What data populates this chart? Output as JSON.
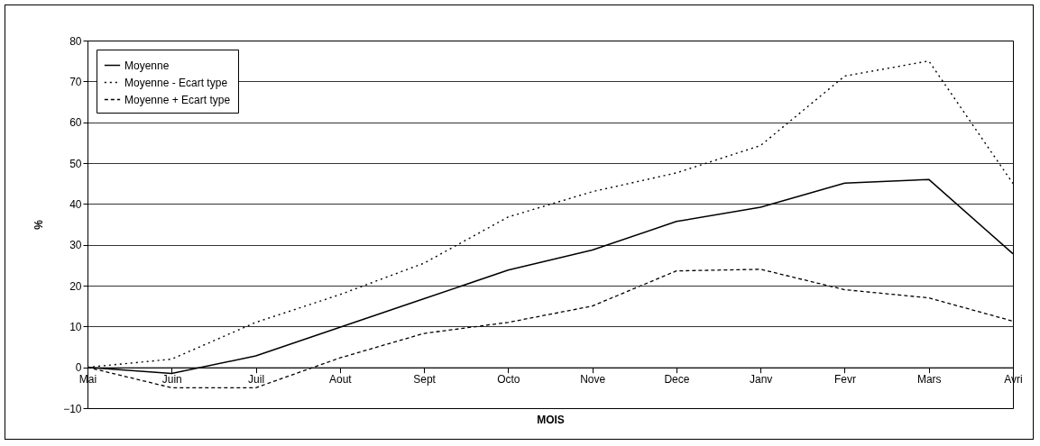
{
  "chart_data": {
    "type": "line",
    "xlabel": "MOIS",
    "ylabel": "%",
    "categories": [
      "Mai",
      "Juin",
      "Juil",
      "Aout",
      "Sept",
      "Octo",
      "Nove",
      "Dece",
      "Janv",
      "Fevr",
      "Mars",
      "Avri"
    ],
    "series": [
      {
        "name": "Moyenne",
        "color": "#000000",
        "line_style": "solid",
        "values": [
          0,
          -1.5,
          2.8,
          9.8,
          16.8,
          23.8,
          28.7,
          35.7,
          39.2,
          45.1,
          46,
          27.8
        ]
      },
      {
        "name": "Moyenne - Ecart type",
        "color": "#000000",
        "line_style": "dotted",
        "values": [
          0,
          2,
          11,
          17.8,
          25.5,
          36.8,
          43,
          47.6,
          54.3,
          71.3,
          75,
          45
        ]
      },
      {
        "name": "Moyenne + Ecart type",
        "color": "#000000",
        "line_style": "dashed",
        "values": [
          0,
          -5,
          -5,
          2.3,
          8.3,
          11,
          15,
          23.6,
          24,
          19,
          17,
          11.3
        ]
      }
    ],
    "ylim": [
      -10,
      80
    ],
    "yticks": [
      -10,
      0,
      10,
      20,
      30,
      40,
      50,
      60,
      70,
      80
    ],
    "grid": "y",
    "legend": "top left",
    "marker": "none"
  }
}
